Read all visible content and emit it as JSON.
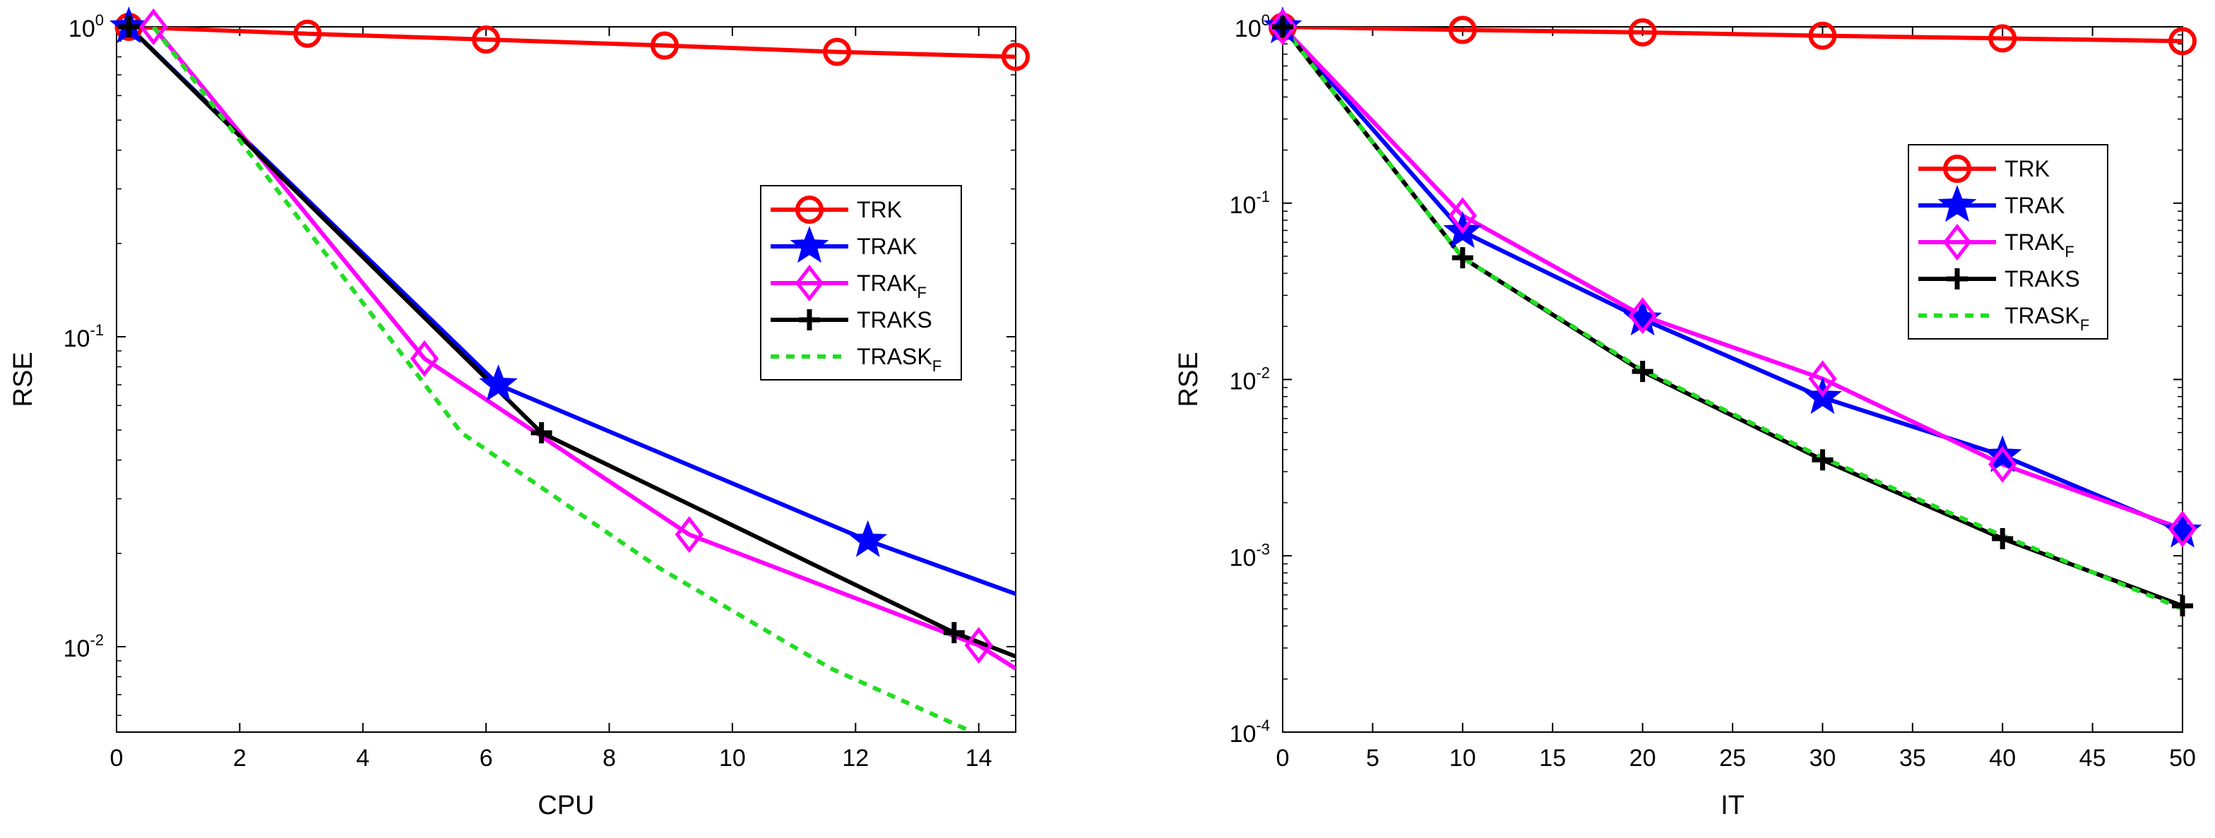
{
  "chart_data": [
    {
      "type": "line",
      "yscale": "log",
      "xlabel": "CPU",
      "ylabel": "RSE",
      "xlim": [
        0,
        14.6
      ],
      "ylim": [
        0.0053,
        1.0
      ],
      "xticks": [
        "0",
        "2",
        "4",
        "6",
        "8",
        "10",
        "12",
        "14"
      ],
      "yticks": [
        {
          "base": "10",
          "exp": "0"
        },
        {
          "base": "10",
          "exp": "-1"
        },
        {
          "base": "10",
          "exp": "-2"
        }
      ],
      "legend_position": "right-middle",
      "series": [
        {
          "name": "TRK",
          "sub": "",
          "color": "#ff0000",
          "marker": "circle",
          "dash": "",
          "x": [
            0.2,
            3.1,
            6.0,
            8.9,
            11.7,
            14.6
          ],
          "y": [
            1.0,
            0.95,
            0.91,
            0.87,
            0.83,
            0.8
          ],
          "markers": "all"
        },
        {
          "name": "TRAK",
          "sub": "",
          "color": "#0000ff",
          "marker": "star",
          "dash": "",
          "x": [
            0.2,
            6.2,
            12.2,
            14.6
          ],
          "y": [
            1.0,
            0.07,
            0.022,
            0.0148
          ],
          "markers": [
            0,
            1,
            2
          ]
        },
        {
          "name": "TRAK",
          "sub": "F",
          "color": "#ff00ff",
          "marker": "diamond",
          "dash": "",
          "x": [
            0.6,
            5.0,
            9.3,
            14.0,
            14.6
          ],
          "y": [
            1.0,
            0.085,
            0.023,
            0.0101,
            0.0085
          ],
          "markers": [
            0,
            1,
            2,
            3
          ]
        },
        {
          "name": "TRAKS",
          "sub": "",
          "color": "#000000",
          "marker": "plus",
          "dash": "",
          "x": [
            0.2,
            6.9,
            13.6,
            14.6
          ],
          "y": [
            1.0,
            0.049,
            0.0111,
            0.0093
          ],
          "markers": [
            0,
            1,
            2
          ]
        },
        {
          "name": "TRASK",
          "sub": "F",
          "color": "#22dd22",
          "marker": "none",
          "dash": "12,10",
          "x": [
            0.6,
            5.6,
            8.8,
            11.6,
            13.9
          ],
          "y": [
            1.0,
            0.049,
            0.018,
            0.0085,
            0.0053
          ],
          "markers": []
        }
      ]
    },
    {
      "type": "line",
      "yscale": "log",
      "xlabel": "IT",
      "ylabel": "RSE",
      "xlim": [
        0,
        50
      ],
      "ylim": [
        0.0001,
        1.0
      ],
      "xticks": [
        "0",
        "5",
        "10",
        "15",
        "20",
        "25",
        "30",
        "35",
        "40",
        "45",
        "50"
      ],
      "yticks": [
        {
          "base": "10",
          "exp": "0"
        },
        {
          "base": "10",
          "exp": "-1"
        },
        {
          "base": "10",
          "exp": "-2"
        },
        {
          "base": "10",
          "exp": "-3"
        },
        {
          "base": "10",
          "exp": "-4"
        }
      ],
      "legend_position": "top-right",
      "series": [
        {
          "name": "TRK",
          "sub": "",
          "color": "#ff0000",
          "marker": "circle",
          "dash": "",
          "x": [
            0,
            10,
            20,
            30,
            40,
            50
          ],
          "y": [
            1.0,
            0.96,
            0.93,
            0.89,
            0.86,
            0.83
          ],
          "markers": "all"
        },
        {
          "name": "TRAK",
          "sub": "",
          "color": "#0000ff",
          "marker": "star",
          "dash": "",
          "x": [
            0,
            10,
            20,
            30,
            40,
            50
          ],
          "y": [
            1.0,
            0.069,
            0.022,
            0.0079,
            0.0037,
            0.00138
          ],
          "markers": "all"
        },
        {
          "name": "TRAK",
          "sub": "F",
          "color": "#ff00ff",
          "marker": "diamond",
          "dash": "",
          "x": [
            0,
            10,
            20,
            30,
            40,
            50
          ],
          "y": [
            1.0,
            0.085,
            0.023,
            0.0101,
            0.0033,
            0.00142
          ],
          "markers": "all"
        },
        {
          "name": "TRAKS",
          "sub": "",
          "color": "#000000",
          "marker": "plus",
          "dash": "",
          "x": [
            0,
            10,
            20,
            30,
            40,
            50
          ],
          "y": [
            1.0,
            0.049,
            0.0111,
            0.0035,
            0.00125,
            0.00052
          ],
          "markers": "all"
        },
        {
          "name": "TRASK",
          "sub": "F",
          "color": "#22dd22",
          "marker": "none",
          "dash": "12,10",
          "x": [
            0,
            10,
            20,
            30,
            40,
            50
          ],
          "y": [
            1.0,
            0.049,
            0.0113,
            0.0036,
            0.0013,
            0.0005
          ],
          "markers": []
        }
      ]
    }
  ]
}
